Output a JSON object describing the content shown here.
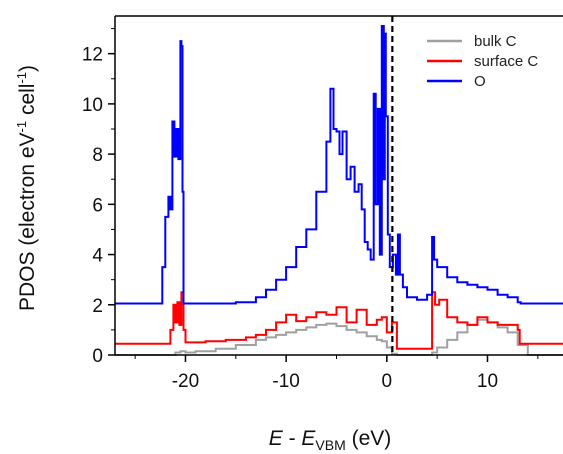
{
  "chart_data": {
    "type": "line",
    "xlabel": {
      "italic_e": "E",
      "dash": " - ",
      "italic_e2": "E",
      "sub": "VBM",
      "unit": " (eV)"
    },
    "ylabel": {
      "main": "PDOS (electron eV",
      "sup1": "-1",
      "mid": " cell",
      "sup2": "-1",
      "end": ")"
    },
    "xlim": [
      -27,
      17.5
    ],
    "ylim": [
      0,
      13.5
    ],
    "xticks": [
      -20,
      -10,
      0,
      10
    ],
    "xtick_labels": [
      "-20",
      "-10",
      "0",
      "10"
    ],
    "yticks": [
      0,
      2,
      4,
      6,
      8,
      10,
      12
    ],
    "ytick_labels": [
      "0",
      "2",
      "4",
      "6",
      "8",
      "10",
      "12"
    ],
    "vline_x": 0.55,
    "legend_position": "top-right",
    "series": [
      {
        "name": "bulk C",
        "color": "#a0a0a0",
        "x": [
          -27,
          -21.5,
          -21,
          -20.5,
          -20,
          -19,
          -17,
          -15,
          -13,
          -12,
          -11,
          -10,
          -9,
          -8,
          -7,
          -6,
          -5,
          -4,
          -3,
          -2,
          -1,
          -0.5,
          0,
          0.5,
          1,
          2,
          3,
          4,
          4.5,
          5,
          6,
          7,
          8,
          9,
          10,
          11,
          12,
          13,
          14,
          17.5
        ],
        "y": [
          0,
          0,
          0.1,
          0.15,
          0.1,
          0.15,
          0.25,
          0.4,
          0.6,
          0.7,
          0.8,
          0.9,
          1.0,
          1.1,
          1.2,
          1.25,
          1.15,
          1.0,
          0.9,
          0.75,
          0.6,
          0.55,
          0.3,
          0.05,
          0,
          0,
          0,
          0,
          0.1,
          0.3,
          0.6,
          0.9,
          1.2,
          1.4,
          1.3,
          1.1,
          0.9,
          0.4,
          0,
          0
        ]
      },
      {
        "name": "surface C",
        "color": "#ff0000",
        "x": [
          -27,
          -22,
          -21.5,
          -21.2,
          -21,
          -20.8,
          -20.6,
          -20.4,
          -20.2,
          -20,
          -18,
          -16,
          -14,
          -13,
          -12,
          -11,
          -10,
          -9,
          -8,
          -7,
          -6,
          -5,
          -4,
          -3,
          -2,
          -1,
          -0.5,
          0,
          0.5,
          1,
          2,
          3,
          4,
          4.5,
          4.8,
          5.2,
          6,
          7,
          8,
          9,
          10,
          11,
          12,
          13,
          13.2,
          17.5
        ],
        "y": [
          0.45,
          0.45,
          1.0,
          2.0,
          1.3,
          2.1,
          1.2,
          2.5,
          1.0,
          0.5,
          0.55,
          0.6,
          0.7,
          0.8,
          1.0,
          1.3,
          1.6,
          1.35,
          1.5,
          1.7,
          1.6,
          1.9,
          1.3,
          1.8,
          1.2,
          1.4,
          1.5,
          0.9,
          1.3,
          0.25,
          0.25,
          0.25,
          0.25,
          2.5,
          2.0,
          2.2,
          1.5,
          1.3,
          1.2,
          1.5,
          1.3,
          1.2,
          1.2,
          1.0,
          0.45,
          0.45
        ]
      },
      {
        "name": "O",
        "color": "#0000ff",
        "x": [
          -27,
          -22.5,
          -22.3,
          -22,
          -21.7,
          -21.5,
          -21.3,
          -21.1,
          -20.9,
          -20.7,
          -20.5,
          -20.4,
          -20.3,
          -20.2,
          -20,
          -15,
          -13,
          -12,
          -11,
          -10,
          -9,
          -8,
          -7,
          -6,
          -5.6,
          -5.3,
          -5.0,
          -4.7,
          -4.4,
          -4.0,
          -3.6,
          -3.2,
          -2.8,
          -2.5,
          -2.2,
          -1.9,
          -1.6,
          -1.3,
          -1.1,
          -0.9,
          -0.7,
          -0.5,
          -0.3,
          -0.2,
          -0.1,
          0.1,
          0.3,
          0.6,
          0.9,
          1.1,
          1.3,
          1.6,
          2,
          3,
          4,
          4.5,
          4.7,
          5,
          6,
          7,
          8,
          9,
          10,
          11,
          12,
          13,
          13.3,
          17.5
        ],
        "y": [
          2.05,
          2.05,
          3.5,
          5.5,
          6.3,
          5.8,
          9.3,
          7.9,
          9.0,
          7.8,
          12.5,
          12.3,
          6.5,
          2.05,
          2.05,
          2.1,
          2.3,
          2.6,
          3.0,
          3.5,
          4.3,
          5.0,
          6.5,
          8.5,
          10.6,
          9.0,
          8.9,
          8.0,
          8.9,
          7.0,
          7.5,
          6.5,
          6.8,
          5.8,
          4.5,
          4.2,
          3.8,
          10.4,
          6.0,
          9.8,
          4.0,
          13.1,
          7.0,
          12.8,
          9.5,
          4.8,
          3.5,
          4.0,
          3.2,
          4.8,
          3.2,
          2.7,
          2.3,
          2.2,
          2.4,
          4.7,
          3.8,
          3.5,
          3.1,
          2.9,
          2.8,
          2.7,
          2.6,
          2.4,
          2.3,
          2.1,
          2.05,
          2.05
        ]
      }
    ]
  }
}
